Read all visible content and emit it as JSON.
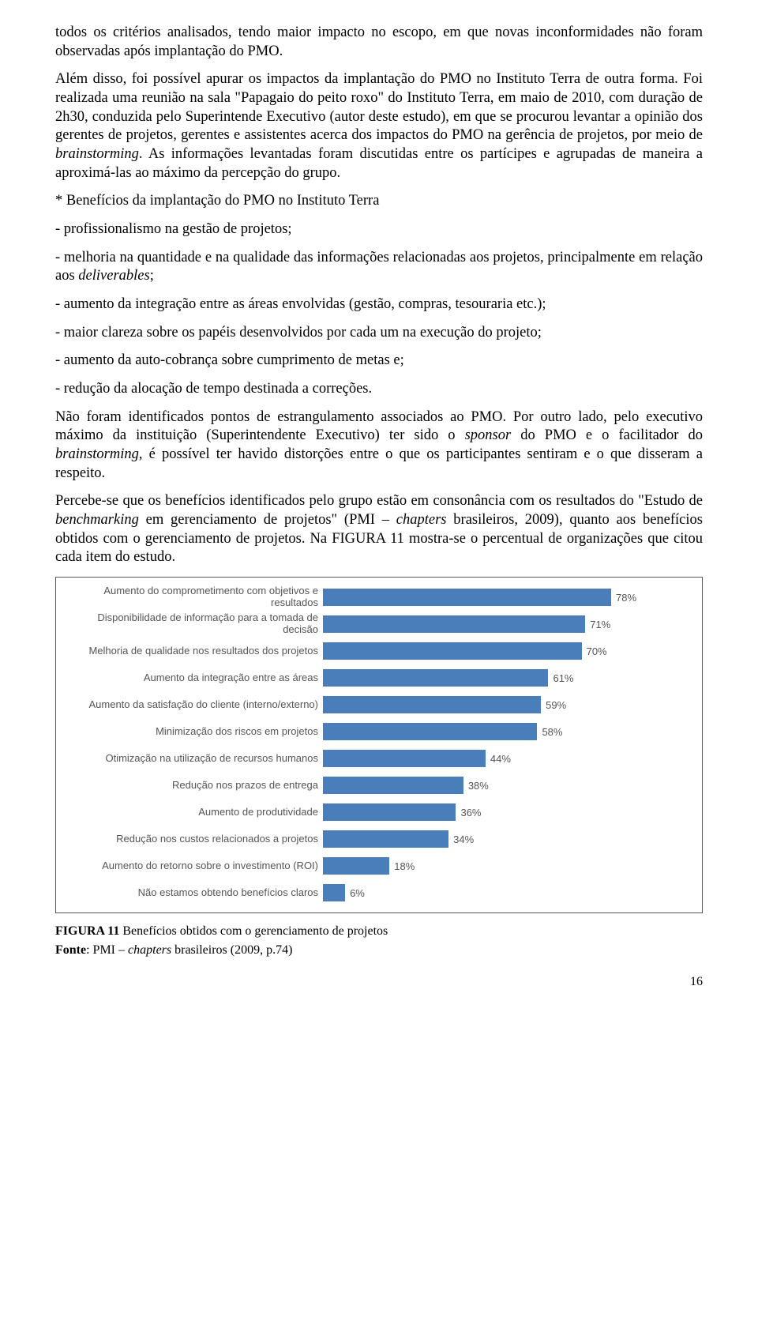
{
  "paragraphs": {
    "p1a": "todos os critérios analisados, tendo maior impacto no escopo, em que novas inconformidades não foram observadas após implantação do PMO.",
    "p2": "Além disso, foi possível apurar os impactos da implantação do PMO no Instituto Terra de outra forma. Foi realizada uma reunião na sala \"Papagaio do peito roxo\" do Instituto Terra, em maio de 2010, com duração de 2h30, conduzida pelo Superintende Executivo (autor deste estudo), em que se procurou levantar a opinião dos gerentes de projetos, gerentes e assistentes acerca dos impactos do PMO na gerência de projetos, por meio de ",
    "p2_it1": "brainstorming",
    "p2b": ". As informações levantadas foram discutidas entre os partícipes e agrupadas de maneira a aproximá-las ao máximo da percepção do grupo.",
    "p3": "* Benefícios da implantação do PMO no Instituto Terra",
    "p4": "- profissionalismo na gestão de projetos;",
    "p5a": "- melhoria na quantidade e na qualidade das informações relacionadas aos projetos, principalmente em relação aos ",
    "p5_it": "deliverables",
    "p5b": ";",
    "p6": "- aumento da integração entre as áreas envolvidas (gestão, compras, tesouraria etc.);",
    "p7": "- maior clareza sobre os papéis desenvolvidos por cada um na execução do projeto;",
    "p8": "- aumento da auto-cobrança sobre cumprimento de metas e;",
    "p9": "- redução da alocação de tempo destinada a correções.",
    "p10a": "Não foram identificados pontos de estrangulamento associados ao PMO. Por outro lado, pelo executivo máximo da instituição (Superintendente Executivo) ter sido o ",
    "p10_it1": "sponsor",
    "p10b": " do PMO e o facilitador do ",
    "p10_it2": "brainstorming",
    "p10c": ", é possível ter havido distorções entre o que os participantes sentiram e o que disseram a respeito.",
    "p11a": "Percebe-se que os benefícios identificados pelo grupo estão em consonância com os resultados do \"Estudo de ",
    "p11_it1": "benchmarking",
    "p11b": " em gerenciamento de projetos\" (PMI – ",
    "p11_it2": "chapters",
    "p11c": " brasileiros, 2009), quanto aos benefícios obtidos com o gerenciamento de projetos. Na FIGURA 11 mostra-se o percentual de organizações que citou cada item do estudo."
  },
  "chart": {
    "type": "bar-horizontal",
    "bar_color": "#4a7ebb",
    "label_color": "#555555",
    "value_color": "#555555",
    "label_fontsize": 13,
    "background_color": "#ffffff",
    "border_color": "#555555",
    "max_value": 100,
    "items": [
      {
        "label": "Aumento do comprometimento com objetivos e resultados",
        "value": 78,
        "display": "78%"
      },
      {
        "label": "Disponibilidade de informação para a tomada de decisão",
        "value": 71,
        "display": "71%"
      },
      {
        "label": "Melhoria de qualidade nos resultados dos projetos",
        "value": 70,
        "display": "70%"
      },
      {
        "label": "Aumento da integração entre as áreas",
        "value": 61,
        "display": "61%"
      },
      {
        "label": "Aumento da satisfação do cliente (interno/externo)",
        "value": 59,
        "display": "59%"
      },
      {
        "label": "Minimização dos riscos em projetos",
        "value": 58,
        "display": "58%"
      },
      {
        "label": "Otimização na utilização de recursos humanos",
        "value": 44,
        "display": "44%"
      },
      {
        "label": "Redução nos prazos de entrega",
        "value": 38,
        "display": "38%"
      },
      {
        "label": "Aumento de produtividade",
        "value": 36,
        "display": "36%"
      },
      {
        "label": "Redução nos custos relacionados a projetos",
        "value": 34,
        "display": "34%"
      },
      {
        "label": "Aumento do retorno sobre o investimento (ROI)",
        "value": 18,
        "display": "18%"
      },
      {
        "label": "Não estamos obtendo benefícios claros",
        "value": 6,
        "display": "6%"
      }
    ]
  },
  "caption": {
    "bold": "FIGURA 11",
    "rest": " Benefícios obtidos com o gerenciamento de projetos"
  },
  "source": {
    "bold": "Fonte",
    "mid": ": PMI – ",
    "it": "chapters",
    "rest": " brasileiros (2009, p.74)"
  },
  "page_number": "16"
}
